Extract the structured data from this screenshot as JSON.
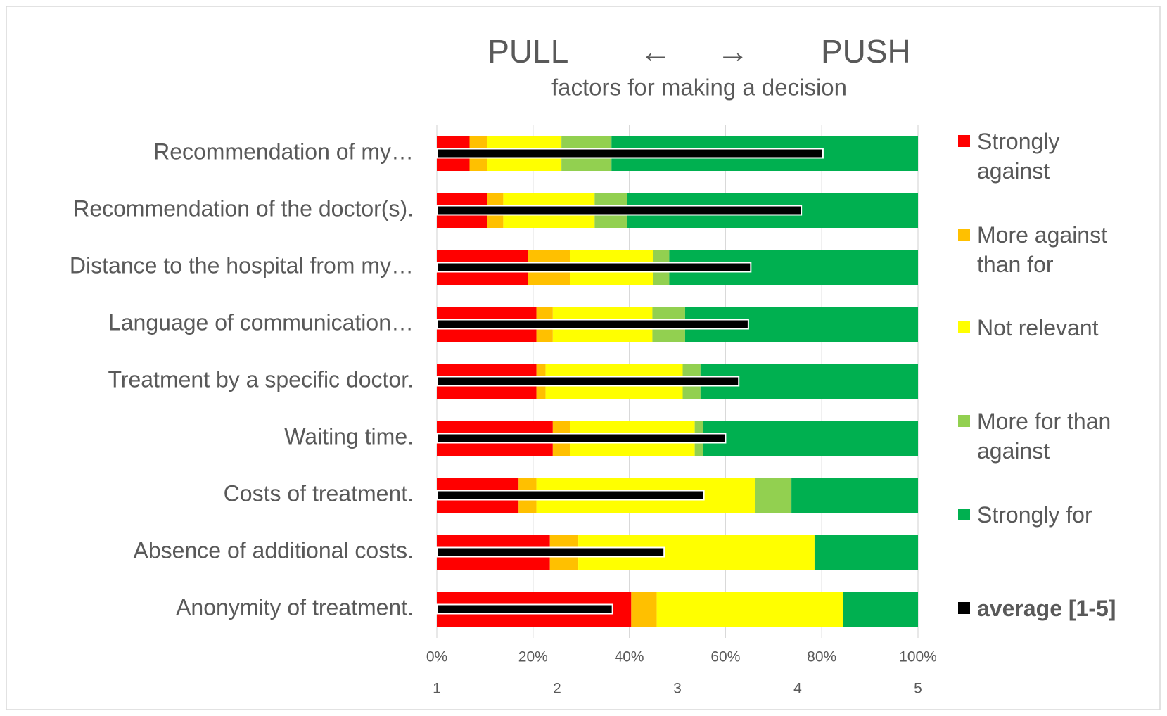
{
  "chart_data": {
    "type": "stacked_hbar",
    "title": "PULL        ←     →        PUSH",
    "subtitle": "factors for making a decision",
    "categories": [
      "Recommendation of my…",
      "Recommendation of the doctor(s).",
      "Distance to the hospital from my…",
      "Language of communication…",
      "Treatment by a specific doctor.",
      "Waiting time.",
      "Costs of treatment.",
      "Absence of additional costs.",
      "Anonymity of treatment."
    ],
    "series": [
      {
        "name": "Strongly against",
        "color": "#ff0000",
        "values": [
          6.8,
          10.4,
          19.0,
          20.7,
          20.7,
          24.1,
          17.0,
          23.5,
          40.4
        ]
      },
      {
        "name": "More against than for",
        "color": "#ffc000",
        "values": [
          3.6,
          3.4,
          8.7,
          3.4,
          1.9,
          3.6,
          3.7,
          5.9,
          5.3
        ]
      },
      {
        "name": "Not relevant",
        "color": "#ffff00",
        "values": [
          15.5,
          19.0,
          17.2,
          20.7,
          28.5,
          25.9,
          45.4,
          49.1,
          38.7
        ]
      },
      {
        "name": "More for than against",
        "color": "#92d050",
        "values": [
          10.4,
          6.8,
          3.4,
          6.8,
          3.7,
          1.7,
          7.6,
          0,
          0
        ]
      },
      {
        "name": "Strongly for",
        "color": "#00b050",
        "values": [
          63.7,
          60.4,
          51.7,
          48.4,
          45.2,
          44.7,
          26.3,
          21.5,
          15.6
        ]
      },
      {
        "name": "average [1-5]",
        "color": "#000000",
        "axis": "x2",
        "values": [
          4.21,
          4.03,
          3.61,
          3.59,
          3.51,
          3.4,
          3.22,
          2.89,
          2.46
        ]
      }
    ],
    "xlim": [
      0,
      100
    ],
    "xticks": [
      {
        "value": 0,
        "label": "0%"
      },
      {
        "value": 20,
        "label": "20%"
      },
      {
        "value": 40,
        "label": "40%"
      },
      {
        "value": 60,
        "label": "60%"
      },
      {
        "value": 80,
        "label": "80%"
      },
      {
        "value": 100,
        "label": "100%"
      }
    ],
    "x2lim": [
      1,
      5
    ],
    "x2ticks": [
      1,
      2,
      3,
      4,
      5
    ],
    "grid": true,
    "legend": "right"
  }
}
